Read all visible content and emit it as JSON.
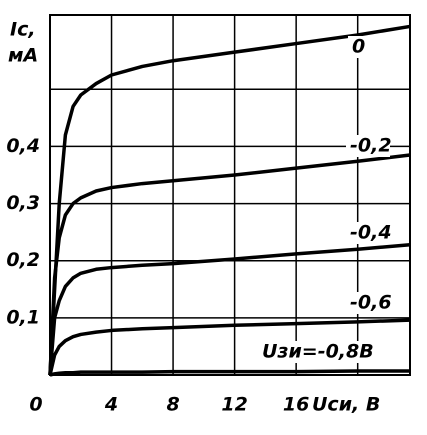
{
  "chart_data": {
    "type": "line",
    "ylabel": "Iс,",
    "yunit": "мА",
    "xlabel": "Uси, В",
    "x": [
      0,
      0.3,
      0.6,
      1,
      1.5,
      2,
      3,
      4,
      6,
      8,
      12,
      16,
      20,
      23.4
    ],
    "series": [
      {
        "name": "0",
        "color": "#000000",
        "values": [
          0,
          0.15,
          0.3,
          0.42,
          0.47,
          0.49,
          0.51,
          0.525,
          0.54,
          0.55,
          0.565,
          0.58,
          0.595,
          0.61
        ]
      },
      {
        "name": "-0,2",
        "color": "#000000",
        "values": [
          0,
          0.17,
          0.24,
          0.28,
          0.3,
          0.31,
          0.322,
          0.328,
          0.335,
          0.34,
          0.35,
          0.362,
          0.374,
          0.385
        ]
      },
      {
        "name": "-0,4",
        "color": "#000000",
        "values": [
          0,
          0.1,
          0.13,
          0.155,
          0.17,
          0.178,
          0.185,
          0.188,
          0.192,
          0.195,
          0.203,
          0.212,
          0.22,
          0.228
        ]
      },
      {
        "name": "-0,6",
        "color": "#000000",
        "values": [
          0,
          0.035,
          0.05,
          0.06,
          0.067,
          0.071,
          0.075,
          0.078,
          0.081,
          0.083,
          0.087,
          0.09,
          0.093,
          0.096
        ]
      },
      {
        "name": "Uзи=-0,8В",
        "color": "#000000",
        "values": [
          0,
          0.002,
          0.003,
          0.004,
          0.004,
          0.005,
          0.005,
          0.005,
          0.005,
          0.006,
          0.006,
          0.006,
          0.007,
          0.007
        ]
      }
    ],
    "xlim": [
      0,
      23.4
    ],
    "ylim": [
      0,
      0.63
    ],
    "xticks": [
      0,
      4,
      8,
      12,
      16,
      {
        "value": 20,
        "label": null
      }
    ],
    "yticks": [
      {
        "value": 0.1,
        "label": "0,1"
      },
      {
        "value": 0.2,
        "label": "0,2"
      },
      {
        "value": 0.3,
        "label": "0,3"
      },
      {
        "value": 0.4,
        "label": "0,4"
      },
      {
        "value": 0.5,
        "label": null
      }
    ],
    "grid": true
  }
}
